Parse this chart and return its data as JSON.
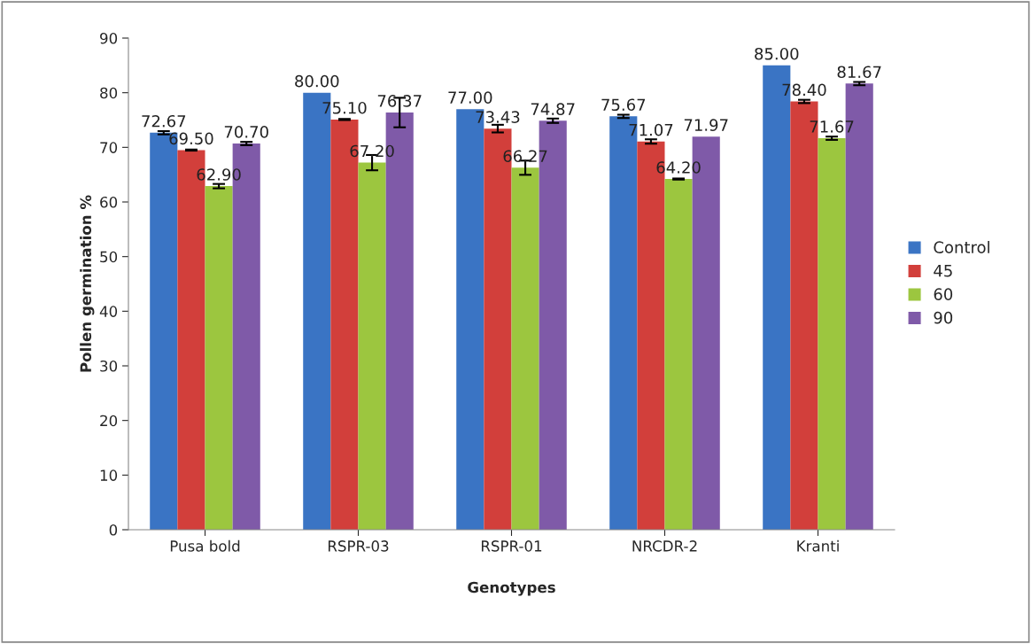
{
  "chart_data": {
    "type": "bar",
    "xlabel": "Genotypes",
    "ylabel": "Pollen germination %",
    "categories": [
      "Pusa bold",
      "RSPR-03",
      "RSPR-01",
      "NRCDR-2",
      "Kranti"
    ],
    "series": [
      {
        "name": "Control",
        "color": "#3a74c4",
        "values": [
          72.67,
          80.0,
          77.0,
          75.67,
          85.0
        ],
        "errors": [
          0.3,
          null,
          null,
          0.3,
          null
        ],
        "value_labels": [
          "72.67",
          "80.00",
          "77.00",
          "75.67",
          "85.00"
        ]
      },
      {
        "name": "45",
        "color": "#d23f3b",
        "values": [
          69.5,
          75.1,
          73.43,
          71.07,
          78.4
        ],
        "errors": [
          0.1,
          0.1,
          0.7,
          0.4,
          0.3
        ],
        "value_labels": [
          "69.50",
          "75.10",
          "73.43",
          "71.07",
          "78.40"
        ]
      },
      {
        "name": "60",
        "color": "#9cc63f",
        "values": [
          62.9,
          67.2,
          66.27,
          64.2,
          71.67
        ],
        "errors": [
          0.4,
          1.4,
          1.3,
          0.1,
          0.3
        ],
        "value_labels": [
          "62.90",
          "67.20",
          "66.27",
          "64.20",
          "71.67"
        ]
      },
      {
        "name": "90",
        "color": "#7f5aa8",
        "values": [
          70.7,
          76.37,
          74.87,
          71.97,
          81.67
        ],
        "errors": [
          0.3,
          2.7,
          0.4,
          null,
          0.3
        ],
        "value_labels": [
          "70.70",
          "76.37",
          "74.87",
          "71.97",
          "81.67"
        ]
      }
    ],
    "ylim": [
      0,
      90
    ],
    "yticks": [
      0,
      10,
      20,
      30,
      40,
      50,
      60,
      70,
      80,
      90
    ],
    "grid": false,
    "legend": "right"
  }
}
